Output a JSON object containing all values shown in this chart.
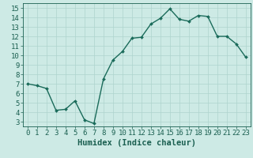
{
  "x": [
    0,
    1,
    2,
    3,
    4,
    5,
    6,
    7,
    8,
    9,
    10,
    11,
    12,
    13,
    14,
    15,
    16,
    17,
    18,
    19,
    20,
    21,
    22,
    23
  ],
  "y": [
    7.0,
    6.8,
    6.5,
    4.2,
    4.3,
    5.2,
    3.2,
    2.8,
    7.5,
    9.5,
    10.4,
    11.8,
    11.9,
    13.3,
    13.9,
    14.9,
    13.8,
    13.6,
    14.2,
    14.1,
    12.0,
    12.0,
    11.2,
    9.8
  ],
  "line_color": "#1a6b5a",
  "marker": "D",
  "marker_size": 2.0,
  "bg_color": "#cdeae5",
  "grid_color": "#aed4ce",
  "xlabel": "Humidex (Indice chaleur)",
  "xlim": [
    -0.5,
    23.5
  ],
  "ylim": [
    2.5,
    15.5
  ],
  "yticks": [
    3,
    4,
    5,
    6,
    7,
    8,
    9,
    10,
    11,
    12,
    13,
    14,
    15
  ],
  "xticks": [
    0,
    1,
    2,
    3,
    4,
    5,
    6,
    7,
    8,
    9,
    10,
    11,
    12,
    13,
    14,
    15,
    16,
    17,
    18,
    19,
    20,
    21,
    22,
    23
  ],
  "xlabel_fontsize": 7.5,
  "tick_fontsize": 6.5,
  "label_color": "#1a5f50",
  "linewidth": 1.0
}
